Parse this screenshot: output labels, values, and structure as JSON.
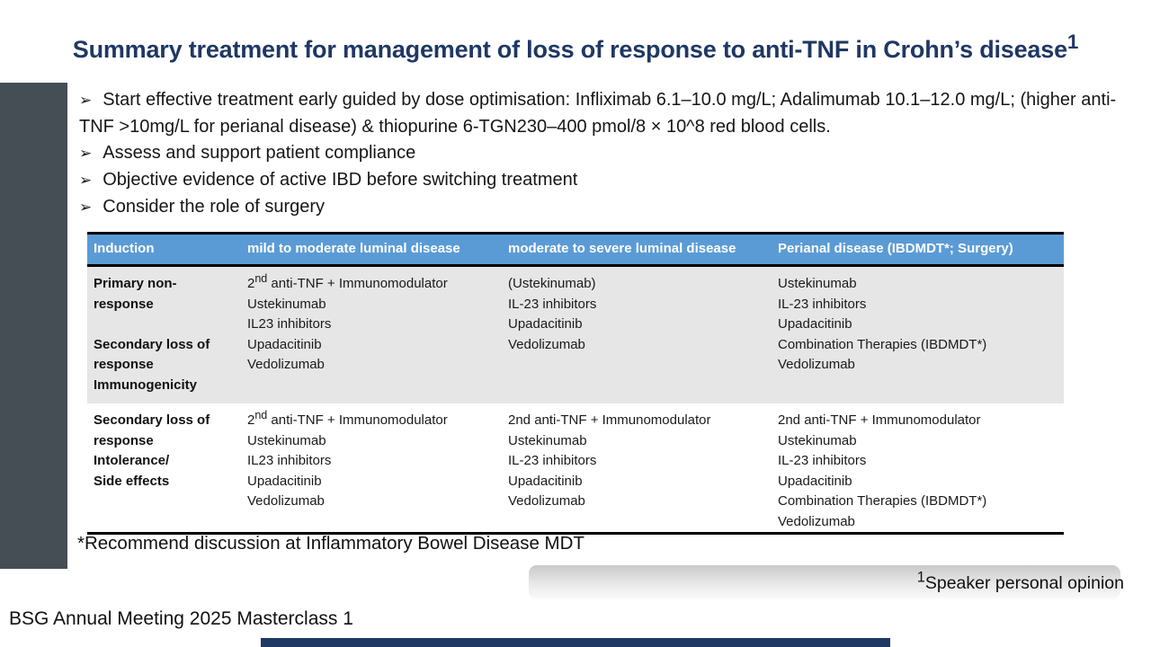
{
  "title_html": "Summary treatment for management of loss of response to anti-TNF in Crohn’s disease<sup>1</sup>",
  "bullet_marker": "➢",
  "bullets": [
    "Start effective treatment early guided by dose optimisation: Infliximab 6.1–10.0 mg/L; Adalimumab 10.1–12.0 mg/L; (higher anti-TNF >10mg/L for perianal disease) & thiopurine 6-TGN230–400 pmol/8 × 10^8 red blood cells.",
    "Assess and support patient compliance",
    "Objective evidence of active IBD before switching treatment",
    "Consider the role of surgery"
  ],
  "table": {
    "headers": [
      "Induction",
      "mild to moderate luminal disease",
      "moderate to severe luminal disease",
      "Perianal disease (IBDMDT*; Surgery)"
    ],
    "rows": [
      {
        "cells": [
          [
            "Primary non-response",
            "",
            "Secondary loss of response",
            "Immunogenicity"
          ],
          [
            "2<sup>nd</sup> anti-TNF + Immunomodulator",
            "Ustekinumab",
            "IL23 inhibitors",
            "Upadacitinib",
            "Vedolizumab"
          ],
          [
            "(Ustekinumab)",
            "IL-23 inhibitors",
            "Upadacitinib",
            "Vedolizumab"
          ],
          [
            "Ustekinumab",
            "IL-23 inhibitors",
            "Upadacitinib",
            "Combination Therapies (IBDMDT*)",
            "Vedolizumab"
          ]
        ]
      },
      {
        "cells": [
          [
            "Secondary loss of response",
            "Intolerance/",
            "Side effects"
          ],
          [
            "2<sup>nd</sup> anti-TNF + Immunomodulator",
            "Ustekinumab",
            "IL23 inhibitors",
            "Upadacitinib",
            "Vedolizumab"
          ],
          [
            "2nd anti-TNF + Immunomodulator",
            "Ustekinumab",
            "IL-23 inhibitors",
            "Upadacitinib",
            "Vedolizumab"
          ],
          [
            "2nd anti-TNF + Immunomodulator",
            "Ustekinumab",
            "IL-23 inhibitors",
            "Upadacitinib",
            "Combination Therapies (IBDMDT*)",
            "Vedolizumab"
          ]
        ]
      }
    ]
  },
  "footnote": "*Recommend discussion at Inflammatory Bowel Disease MDT",
  "speaker_note_html": "<sup>1</sup>Speaker personal opinion",
  "event_footer": "BSG Annual Meeting 2025 Masterclass 1",
  "colors": {
    "accent_navy": "#1F3864",
    "header_blue": "#5B9BD5",
    "row_gray": "#E7E6E6",
    "sidebar_gray": "#454E54"
  }
}
